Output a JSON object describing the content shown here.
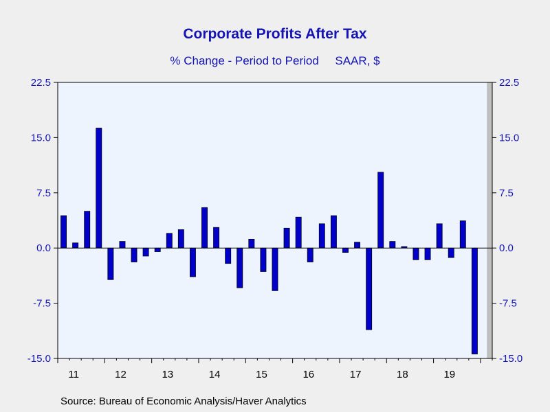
{
  "title": "Corporate Profits After Tax",
  "subtitle": "% Change - Period to Period     SAAR, $",
  "source": "Source:  Bureau of Economic Analysis/Haver Analytics",
  "colors": {
    "bar": "#0000c8",
    "bar_outline": "#000000",
    "plot_background": "#eef4fe",
    "recession_shade": "#c0c0c0",
    "axis_text": "#1414b4"
  },
  "chart_data": {
    "type": "bar",
    "frequency": "quarterly",
    "start": "2011Q1",
    "year_labels": [
      "11",
      "12",
      "13",
      "14",
      "15",
      "16",
      "17",
      "18",
      "19"
    ],
    "values": [
      4.4,
      0.7,
      5.0,
      16.3,
      -4.3,
      0.9,
      -1.9,
      -1.1,
      -0.5,
      2.0,
      2.5,
      -3.9,
      5.5,
      2.8,
      -2.1,
      -5.4,
      1.2,
      -3.2,
      -5.8,
      2.7,
      4.2,
      -1.9,
      3.3,
      4.4,
      -0.6,
      0.8,
      -11.1,
      10.3,
      0.9,
      0.2,
      -1.6,
      -1.6,
      3.3,
      -1.3,
      3.7,
      -14.4
    ],
    "ylim": [
      -15.0,
      22.5
    ],
    "y_ticks": [
      "22.5",
      "15.0",
      "7.5",
      "0.0",
      "-7.5",
      "-15.0"
    ],
    "dual_y_axis": true,
    "shaded_region": "2020Q1",
    "grid": false,
    "legend": "none"
  }
}
